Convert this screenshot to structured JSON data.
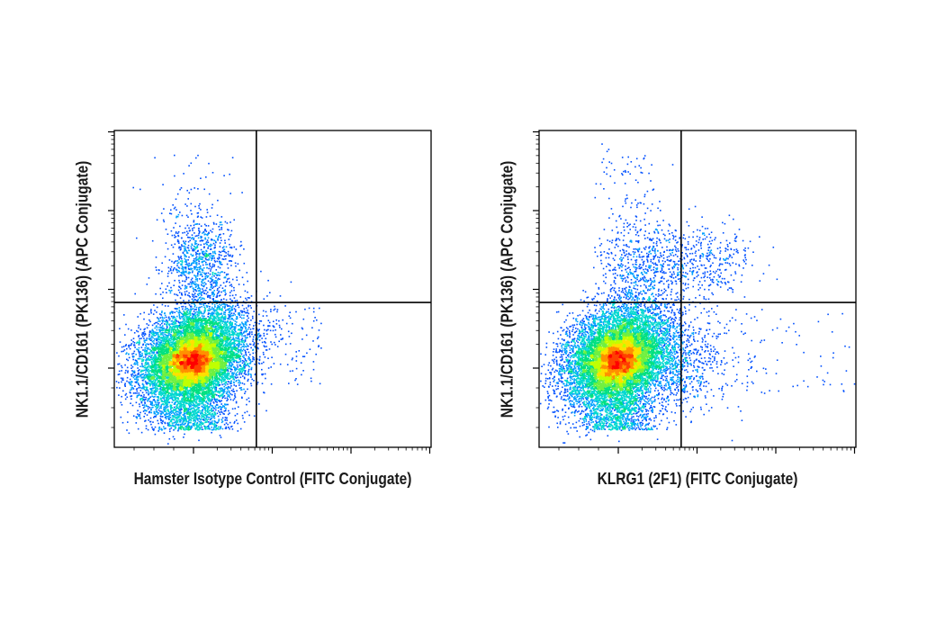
{
  "chart_data": [
    {
      "type": "scatter",
      "subtype": "flow-cytometry-density-dot-plot",
      "xlabel": "Hamster Isotype Control (FITC Conjugate)",
      "ylabel": "NK1.1/CD161 (PK136) (APC Conjugate)",
      "x_scale": "log",
      "y_scale": "log",
      "xlim": [
        -200,
        100000
      ],
      "ylim": [
        -300,
        100000
      ],
      "quadrant_gate": {
        "x": 2000,
        "y": 1500
      },
      "populations": [
        {
          "name": "NK1.1- KLRG1- main cluster",
          "center": [
            100,
            150
          ],
          "relative_density": "very high"
        },
        {
          "name": "NK1.1+ cluster",
          "center": [
            80,
            10000
          ],
          "relative_density": "low"
        }
      ],
      "density_colors": [
        "#0000ff",
        "#00a0ff",
        "#00e080",
        "#c0ff00",
        "#ffe000",
        "#ff6000",
        "#ff0000"
      ]
    },
    {
      "type": "scatter",
      "subtype": "flow-cytometry-density-dot-plot",
      "xlabel": "KLRG1 (2F1) (FITC Conjugate)",
      "ylabel": "NK1.1/CD161 (PK136) (APC Conjugate)",
      "x_scale": "log",
      "y_scale": "log",
      "xlim": [
        -200,
        100000
      ],
      "ylim": [
        -300,
        100000
      ],
      "quadrant_gate": {
        "x": 2000,
        "y": 1500
      },
      "populations": [
        {
          "name": "NK1.1- KLRG1- main cluster",
          "center": [
            100,
            150
          ],
          "relative_density": "very high"
        },
        {
          "name": "NK1.1+ KLRG1- cluster",
          "center": [
            300,
            10000
          ],
          "relative_density": "low"
        },
        {
          "name": "NK1.1+ KLRG1+ cluster",
          "center": [
            5000,
            8000
          ],
          "relative_density": "low"
        }
      ],
      "density_colors": [
        "#0000ff",
        "#00a0ff",
        "#00e080",
        "#c0ff00",
        "#ffe000",
        "#ff6000",
        "#ff0000"
      ]
    }
  ]
}
